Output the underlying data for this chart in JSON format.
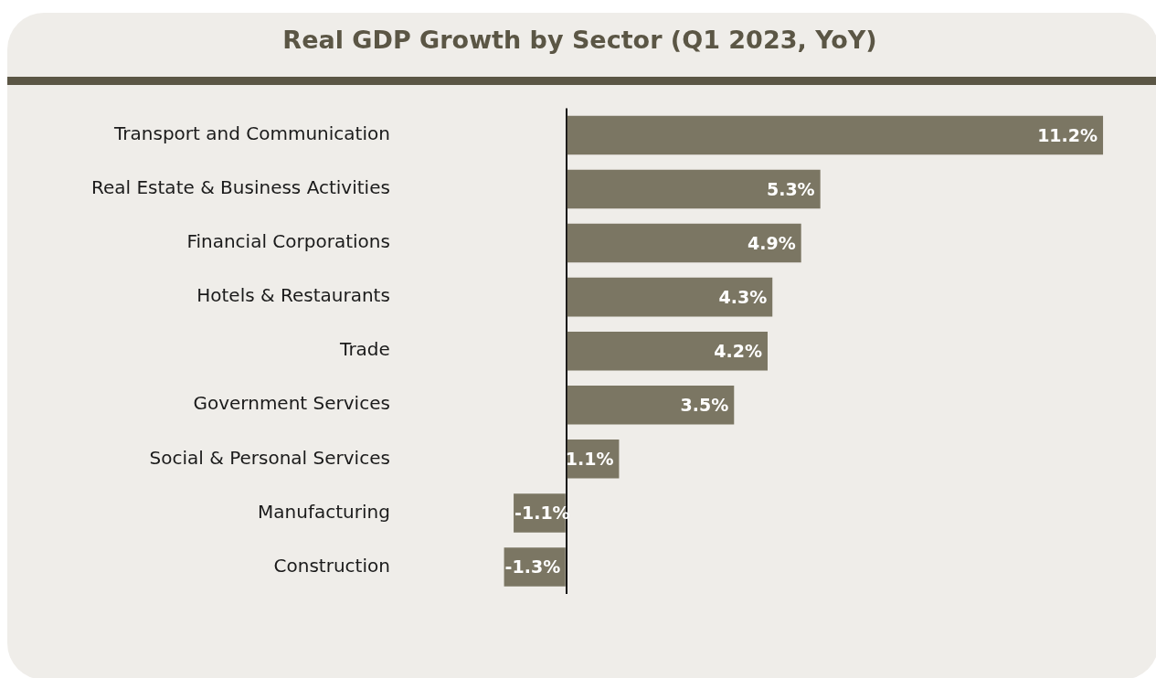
{
  "chart_data": {
    "type": "bar",
    "orientation": "horizontal",
    "title": "Real GDP Growth by Sector (Q1 2023, YoY)",
    "categories": [
      "Transport and Communication",
      "Real Estate & Business Activities",
      "Financial Corporations",
      "Hotels & Restaurants",
      "Trade",
      "Government Services",
      "Social & Personal Services",
      "Manufacturing",
      "Construction"
    ],
    "values": [
      11.2,
      5.3,
      4.9,
      4.3,
      4.2,
      3.5,
      1.1,
      -1.1,
      -1.3
    ],
    "value_labels": [
      "11.2%",
      "5.3%",
      "4.9%",
      "4.3%",
      "4.2%",
      "3.5%",
      "1.1%",
      "-1.1%",
      "-1.3%"
    ],
    "color": "#7b7663",
    "tick_labels": "y",
    "grid": false,
    "legend": false
  }
}
